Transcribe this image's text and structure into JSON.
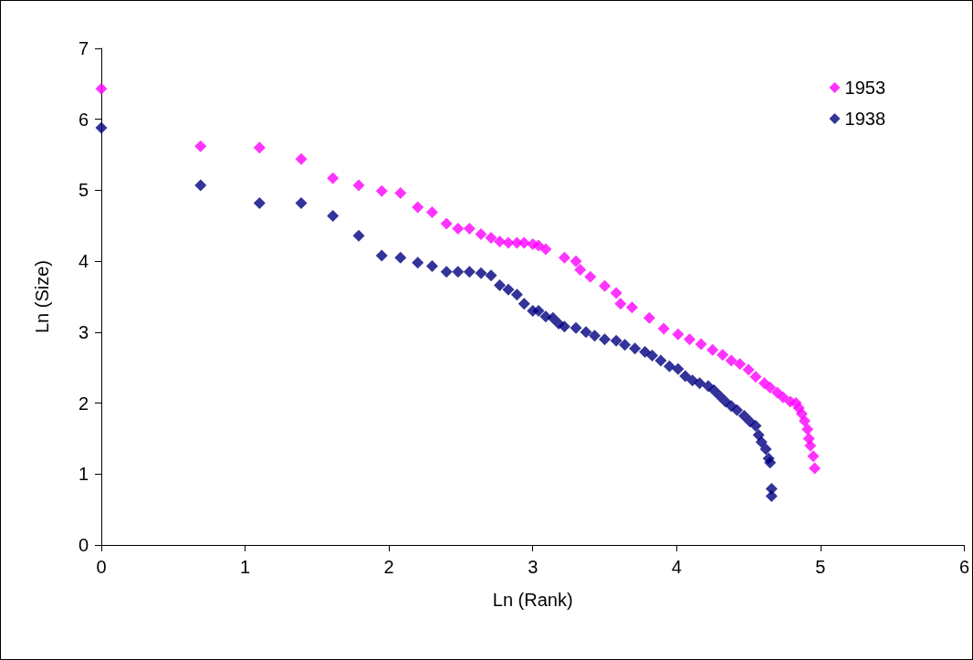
{
  "chart_data": {
    "type": "scatter",
    "xlabel": "Ln (Rank)",
    "ylabel": "Ln (Size)",
    "xlim": [
      0,
      6
    ],
    "xticks": [
      0,
      1,
      2,
      3,
      4,
      5,
      6
    ],
    "ylim": [
      0,
      7
    ],
    "yticks": [
      0,
      1,
      2,
      3,
      4,
      5,
      6,
      7
    ],
    "grid": false,
    "legend": "top right",
    "marker": "diamond",
    "series": [
      {
        "name": "1953",
        "color": "#ff00ff",
        "x": [
          0,
          0.69,
          1.1,
          1.39,
          1.61,
          1.79,
          1.95,
          2.08,
          2.2,
          2.3,
          2.4,
          2.48,
          2.56,
          2.64,
          2.71,
          2.77,
          2.83,
          2.89,
          2.94,
          3.0,
          3.04,
          3.09,
          3.22,
          3.3,
          3.33,
          3.4,
          3.5,
          3.58,
          3.61,
          3.69,
          3.81,
          3.91,
          4.01,
          4.09,
          4.17,
          4.25,
          4.32,
          4.38,
          4.44,
          4.5,
          4.55,
          4.61,
          4.65,
          4.7,
          4.74,
          4.79,
          4.83,
          4.85,
          4.87,
          4.89,
          4.91,
          4.92,
          4.93,
          4.95,
          4.96
        ],
        "values": [
          6.43,
          5.62,
          5.6,
          5.44,
          5.17,
          5.07,
          4.99,
          4.96,
          4.76,
          4.69,
          4.53,
          4.46,
          4.46,
          4.38,
          4.33,
          4.28,
          4.26,
          4.26,
          4.26,
          4.24,
          4.22,
          4.17,
          4.05,
          4.0,
          3.88,
          3.78,
          3.65,
          3.55,
          3.4,
          3.35,
          3.2,
          3.05,
          2.97,
          2.9,
          2.83,
          2.75,
          2.68,
          2.6,
          2.55,
          2.47,
          2.37,
          2.28,
          2.22,
          2.15,
          2.08,
          2.02,
          2.0,
          1.93,
          1.85,
          1.75,
          1.63,
          1.5,
          1.4,
          1.25,
          1.08
        ]
      },
      {
        "name": "1938",
        "color": "#000080",
        "x": [
          0,
          0.69,
          1.1,
          1.39,
          1.61,
          1.79,
          1.95,
          2.08,
          2.2,
          2.3,
          2.4,
          2.48,
          2.56,
          2.64,
          2.71,
          2.77,
          2.83,
          2.89,
          2.94,
          3.0,
          3.04,
          3.09,
          3.14,
          3.18,
          3.22,
          3.3,
          3.37,
          3.43,
          3.5,
          3.58,
          3.64,
          3.71,
          3.78,
          3.83,
          3.89,
          3.95,
          4.01,
          4.06,
          4.11,
          4.16,
          4.22,
          4.26,
          4.3,
          4.34,
          4.38,
          4.42,
          4.47,
          4.51,
          4.55,
          4.57,
          4.59,
          4.62,
          4.64,
          4.65,
          4.66,
          4.66
        ],
        "values": [
          5.88,
          5.07,
          4.82,
          4.82,
          4.64,
          4.36,
          4.08,
          4.05,
          3.98,
          3.93,
          3.85,
          3.85,
          3.85,
          3.83,
          3.8,
          3.66,
          3.6,
          3.53,
          3.4,
          3.3,
          3.3,
          3.22,
          3.2,
          3.12,
          3.08,
          3.06,
          3.0,
          2.95,
          2.9,
          2.88,
          2.82,
          2.77,
          2.72,
          2.67,
          2.6,
          2.52,
          2.48,
          2.38,
          2.32,
          2.28,
          2.24,
          2.18,
          2.1,
          2.02,
          1.96,
          1.9,
          1.82,
          1.74,
          1.68,
          1.55,
          1.45,
          1.35,
          1.22,
          1.16,
          0.79,
          0.69
        ]
      }
    ]
  }
}
